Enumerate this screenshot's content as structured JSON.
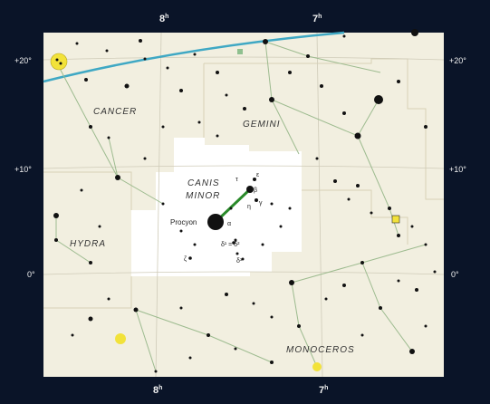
{
  "ra_labels": {
    "top_8h": "8",
    "top_7h": "7",
    "bottom_8h": "8",
    "bottom_7h": "7",
    "sup": "h"
  },
  "dec_labels": {
    "p20_left": "+20°",
    "p20_right": "+20°",
    "p10_left": "+10°",
    "p10_right": "+10°",
    "zero_left": "0°",
    "zero_right": "0°"
  },
  "constellations": {
    "cancer": "CANCER",
    "gemini": "GEMINI",
    "canis_minor_line1": "CANIS",
    "canis_minor_line2": "MINOR",
    "hydra": "HYDRA",
    "monoceros": "MONOCEROS"
  },
  "stars": {
    "procyon": "Procyon",
    "alpha": "α",
    "beta": "β",
    "gamma": "γ",
    "epsilon": "ε",
    "eta": "η",
    "delta": "δ",
    "zeta": "ζ",
    "tau": "τ",
    "delta1_delta2": "δ¹ = δ²",
    "delta3": "δ³"
  },
  "colors": {
    "background": "#0a1428",
    "chart_paper": "#f2efe0",
    "canis_minor_region": "#ffffff",
    "ecliptic": "#3fa8c4",
    "constellation_line": "#9dbb8f",
    "canis_minor_line": "#2a8a2a",
    "grid": "#cfcbb8",
    "yellow_marker": "#f2e23a"
  }
}
